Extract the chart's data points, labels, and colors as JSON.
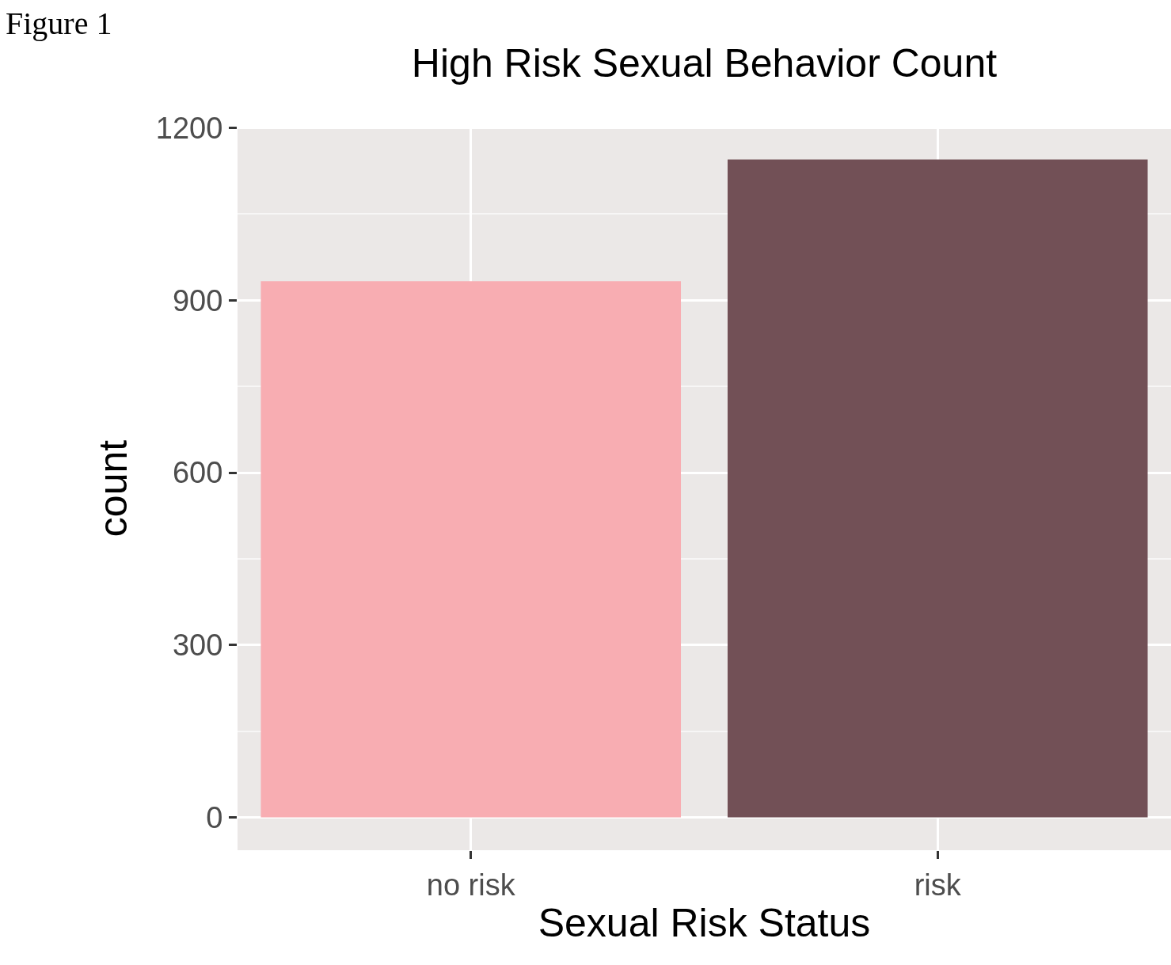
{
  "chart_data": {
    "type": "bar",
    "title": "High Risk Sexual Behavior Count",
    "xlabel": "Sexual Risk Status",
    "ylabel": "count",
    "categories": [
      "no risk",
      "risk"
    ],
    "values": [
      933,
      1145
    ],
    "colors": [
      "#f8adb2",
      "#725056"
    ],
    "ylim": [
      -57,
      1202
    ],
    "yticks": [
      0,
      300,
      600,
      900,
      1200
    ],
    "grid": true,
    "annotations": [
      "Figure 1"
    ]
  }
}
